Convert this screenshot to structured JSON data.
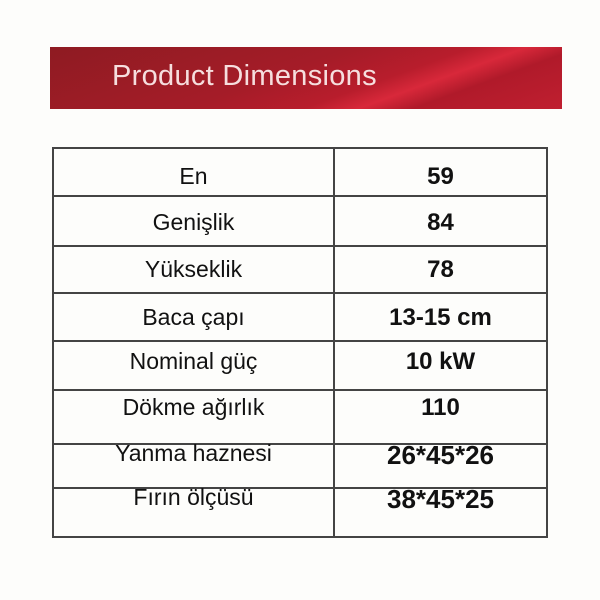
{
  "header": {
    "title": "Product Dimensions",
    "color": "#a51c28"
  },
  "rows": [
    {
      "label": "En",
      "value": "59"
    },
    {
      "label": "Genişlik",
      "value": "84"
    },
    {
      "label": "Yükseklik",
      "value": "78"
    },
    {
      "label": "Baca çapı",
      "value": "13-15 cm"
    },
    {
      "label": "Nominal güç",
      "value": "10 kW"
    },
    {
      "label": "Dökme ağırlık",
      "value": "110"
    },
    {
      "label": "Yanma haznesi",
      "value": "26*45*26"
    },
    {
      "label": "Fırın ölçüsü",
      "value": "38*45*25"
    }
  ]
}
